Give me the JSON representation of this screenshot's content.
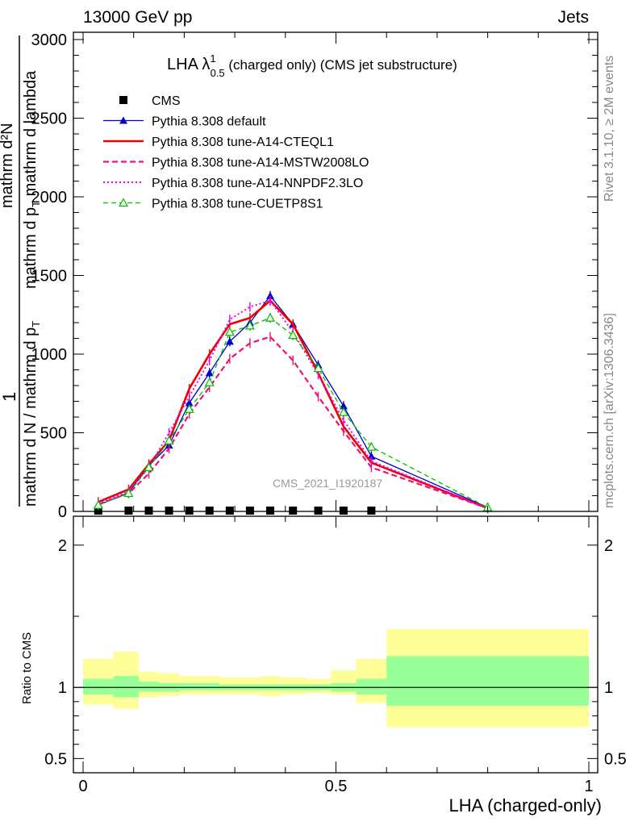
{
  "header": {
    "left": "13000 GeV pp",
    "right": "Jets"
  },
  "side_labels": {
    "rivet": "Rivet 3.1.10, ≥ 2M events",
    "mcplots": "mcplots.cern.ch [arXiv:1306.3436]"
  },
  "watermark": "CMS_2021_I1920187",
  "title": {
    "lha": "LHA λ",
    "sup": "1",
    "sub": "0.5",
    "rest": " (charged only) (CMS jet substructure)"
  },
  "ylabel": {
    "one": "1",
    "denominator": "mathrm d N / mathrm d p",
    "denominator_sub": "T",
    "numerator1": "mathrm d²N",
    "numerator2": "mathrm d p",
    "numerator2_sub": "T",
    "numerator3": " mathrm d lambda"
  },
  "ratio_ylabel": "Ratio to CMS",
  "xlabel": "LHA (charged-only)",
  "chart_data": [
    {
      "type": "line",
      "panel": "main",
      "x": [
        0.03,
        0.09,
        0.13,
        0.17,
        0.21,
        0.25,
        0.29,
        0.33,
        0.37,
        0.415,
        0.465,
        0.515,
        0.57,
        0.8
      ],
      "xlim": [
        -0.02,
        1.0
      ],
      "ylim": [
        0,
        3100
      ],
      "y_ticks": [
        "0",
        "500",
        "1000",
        "1500",
        "2000",
        "2500",
        "3000"
      ],
      "x_ticks": [
        "0",
        "0.5",
        "1"
      ],
      "legend_position": "top-left",
      "series": [
        {
          "name": "CMS",
          "color": "#000000",
          "style": "data",
          "values": [
            0,
            0,
            0,
            0,
            0,
            0,
            0,
            0,
            0,
            0,
            0,
            0,
            0,
            0
          ]
        },
        {
          "name": "Pythia 8.308 default",
          "color": "#0000cc",
          "style": "solid-thin",
          "marker": "triangle-filled",
          "values": [
            40,
            120,
            290,
            420,
            690,
            880,
            1080,
            1200,
            1370,
            1190,
            930,
            670,
            350,
            25
          ]
        },
        {
          "name": "Pythia 8.308 tune-A14-CTEQL1",
          "color": "#ee0000",
          "style": "solid-thick",
          "marker": "none",
          "values": [
            60,
            140,
            300,
            450,
            780,
            1000,
            1190,
            1230,
            1340,
            1190,
            880,
            540,
            310,
            20
          ]
        },
        {
          "name": "Pythia 8.308 tune-A14-MSTW2008LO",
          "color": "#ee1177",
          "style": "dashed",
          "marker": "none",
          "values": [
            45,
            115,
            240,
            400,
            620,
            790,
            970,
            1070,
            1110,
            960,
            730,
            510,
            280,
            20
          ]
        },
        {
          "name": "Pythia 8.308 tune-A14-NNPDF2.3LO",
          "color": "#ee00ee",
          "style": "dotted",
          "marker": "none",
          "values": [
            50,
            130,
            280,
            500,
            730,
            960,
            1220,
            1300,
            1340,
            1140,
            870,
            580,
            320,
            20
          ]
        },
        {
          "name": "Pythia 8.308 tune-CUETP8S1",
          "color": "#00bb00",
          "style": "dashed-thin",
          "marker": "triangle-open",
          "values": [
            40,
            115,
            280,
            450,
            650,
            820,
            1140,
            1180,
            1230,
            1120,
            910,
            630,
            410,
            25
          ]
        }
      ]
    },
    {
      "type": "area",
      "panel": "ratio",
      "ylabel": "Ratio to CMS",
      "ylim": [
        0.4,
        2.35
      ],
      "y_ticks": [
        "0.5",
        "1",
        "2"
      ],
      "bins": [
        {
          "x0": 0.0,
          "x1": 0.06,
          "stat": [
            0.95,
            1.06
          ],
          "total": [
            0.88,
            1.2
          ]
        },
        {
          "x0": 0.06,
          "x1": 0.11,
          "stat": [
            0.93,
            1.08
          ],
          "total": [
            0.85,
            1.25
          ]
        },
        {
          "x0": 0.11,
          "x1": 0.15,
          "stat": [
            0.97,
            1.04
          ],
          "total": [
            0.93,
            1.11
          ]
        },
        {
          "x0": 0.15,
          "x1": 0.19,
          "stat": [
            0.97,
            1.03
          ],
          "total": [
            0.94,
            1.1
          ]
        },
        {
          "x0": 0.19,
          "x1": 0.23,
          "stat": [
            0.98,
            1.03
          ],
          "total": [
            0.95,
            1.08
          ]
        },
        {
          "x0": 0.23,
          "x1": 0.27,
          "stat": [
            0.98,
            1.03
          ],
          "total": [
            0.95,
            1.08
          ]
        },
        {
          "x0": 0.27,
          "x1": 0.31,
          "stat": [
            0.98,
            1.02
          ],
          "total": [
            0.95,
            1.07
          ]
        },
        {
          "x0": 0.31,
          "x1": 0.35,
          "stat": [
            0.98,
            1.02
          ],
          "total": [
            0.95,
            1.07
          ]
        },
        {
          "x0": 0.35,
          "x1": 0.39,
          "stat": [
            0.98,
            1.02
          ],
          "total": [
            0.94,
            1.08
          ]
        },
        {
          "x0": 0.39,
          "x1": 0.44,
          "stat": [
            0.98,
            1.02
          ],
          "total": [
            0.95,
            1.07
          ]
        },
        {
          "x0": 0.44,
          "x1": 0.49,
          "stat": [
            0.98,
            1.02
          ],
          "total": [
            0.96,
            1.06
          ]
        },
        {
          "x0": 0.49,
          "x1": 0.54,
          "stat": [
            0.97,
            1.03
          ],
          "total": [
            0.95,
            1.12
          ]
        },
        {
          "x0": 0.54,
          "x1": 0.6,
          "stat": [
            0.95,
            1.06
          ],
          "total": [
            0.89,
            1.2
          ]
        },
        {
          "x0": 0.6,
          "x1": 1.0,
          "stat": [
            0.87,
            1.22
          ],
          "total": [
            0.72,
            1.41
          ]
        }
      ]
    }
  ]
}
